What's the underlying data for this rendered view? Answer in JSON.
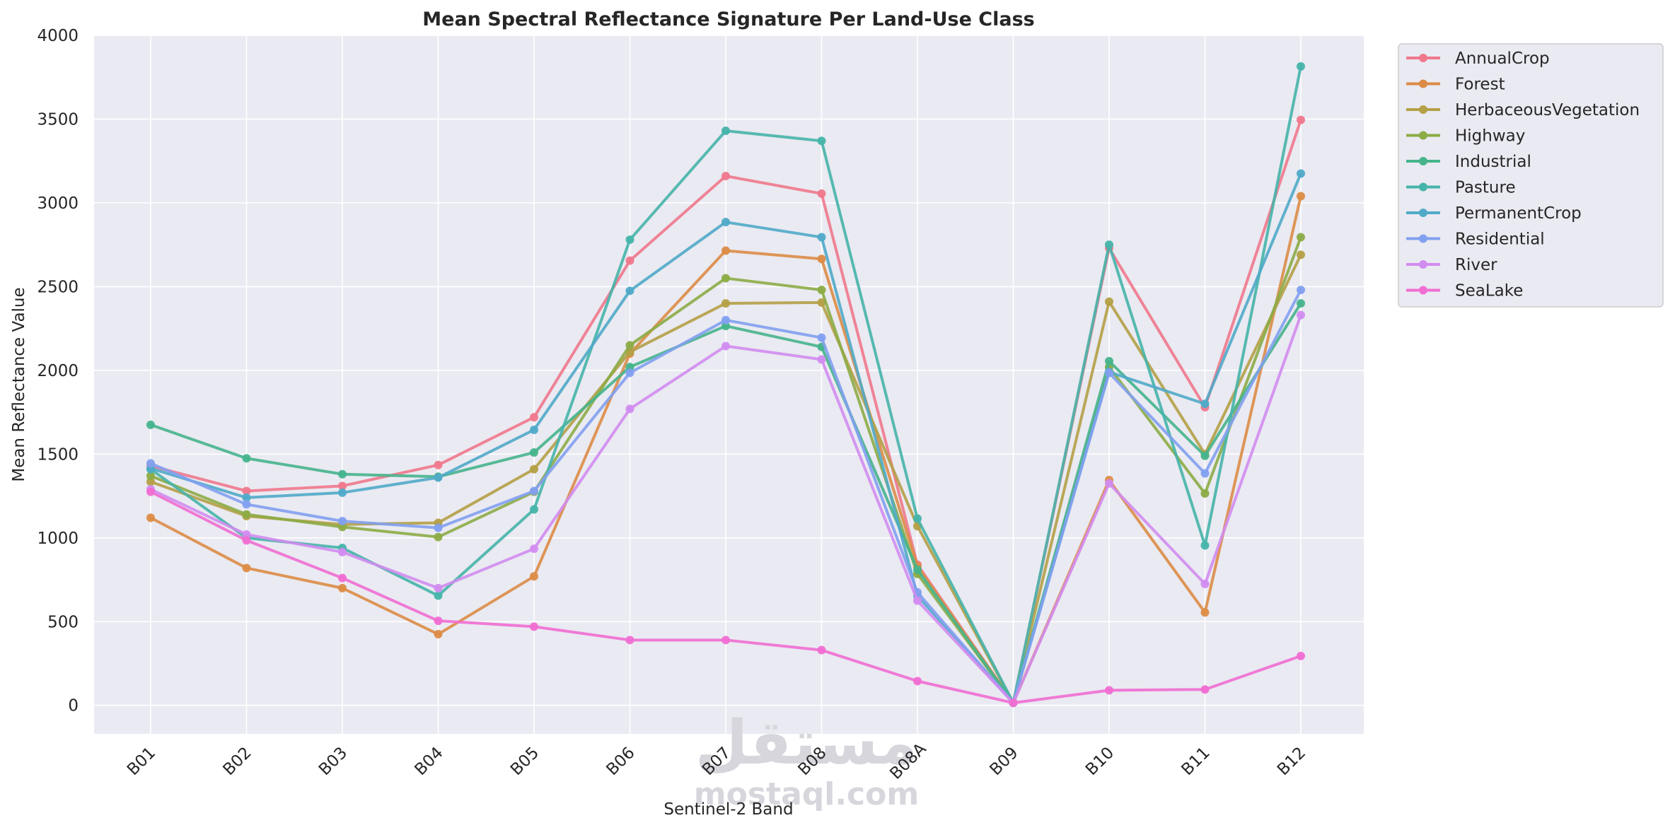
{
  "chart_data": {
    "type": "line",
    "title": "Mean Spectral Reflectance Signature Per Land-Use Class",
    "xlabel": "Sentinel-2 Band",
    "ylabel": "Mean Reflectance Value",
    "ylim": [
      -170,
      4000
    ],
    "yticks": [
      0,
      500,
      1000,
      1500,
      2000,
      2500,
      3000,
      3500,
      4000
    ],
    "grid": true,
    "legend_position": "outside-top-right",
    "categories": [
      "B01",
      "B02",
      "B03",
      "B04",
      "B05",
      "B06",
      "B07",
      "B08",
      "B08A",
      "B09",
      "B10",
      "B11",
      "B12"
    ],
    "series": [
      {
        "name": "AnnualCrop",
        "color": "#f0788c",
        "values": [
          1430,
          1280,
          1310,
          1435,
          1720,
          2655,
          3160,
          3055,
          840,
          15,
          2730,
          1780,
          3495
        ]
      },
      {
        "name": "Forest",
        "color": "#dc8c46",
        "values": [
          1120,
          820,
          700,
          425,
          770,
          2100,
          2715,
          2665,
          830,
          15,
          1345,
          555,
          3040
        ]
      },
      {
        "name": "HerbaceousVegetation",
        "color": "#b4a046",
        "values": [
          1335,
          1130,
          1080,
          1090,
          1410,
          2110,
          2400,
          2405,
          1070,
          15,
          2410,
          1500,
          2690
        ]
      },
      {
        "name": "Highway",
        "color": "#8cac46",
        "values": [
          1370,
          1140,
          1065,
          1005,
          1275,
          2150,
          2550,
          2480,
          785,
          15,
          2020,
          1265,
          2795
        ]
      },
      {
        "name": "Industrial",
        "color": "#46b48c",
        "values": [
          1675,
          1475,
          1380,
          1365,
          1510,
          2020,
          2265,
          2140,
          810,
          15,
          2055,
          1490,
          2400
        ]
      },
      {
        "name": "Pasture",
        "color": "#46b4aa",
        "values": [
          1410,
          1000,
          940,
          655,
          1170,
          2780,
          3430,
          3370,
          1115,
          15,
          2750,
          955,
          3815
        ]
      },
      {
        "name": "PermanentCrop",
        "color": "#50aac8",
        "values": [
          1415,
          1240,
          1270,
          1360,
          1645,
          2475,
          2885,
          2795,
          655,
          15,
          1990,
          1800,
          3175
        ]
      },
      {
        "name": "Residential",
        "color": "#82a0f0",
        "values": [
          1445,
          1200,
          1100,
          1060,
          1280,
          1985,
          2300,
          2195,
          675,
          15,
          1985,
          1385,
          2480
        ]
      },
      {
        "name": "River",
        "color": "#d28cf0",
        "values": [
          1290,
          1020,
          915,
          700,
          935,
          1770,
          2145,
          2065,
          625,
          15,
          1325,
          725,
          2330
        ]
      },
      {
        "name": "SeaLake",
        "color": "#f06ed2",
        "values": [
          1275,
          985,
          760,
          505,
          470,
          390,
          390,
          330,
          145,
          15,
          90,
          95,
          295
        ]
      }
    ]
  },
  "watermark": {
    "arabic": "مستقل",
    "latin": "mostaql.com"
  }
}
